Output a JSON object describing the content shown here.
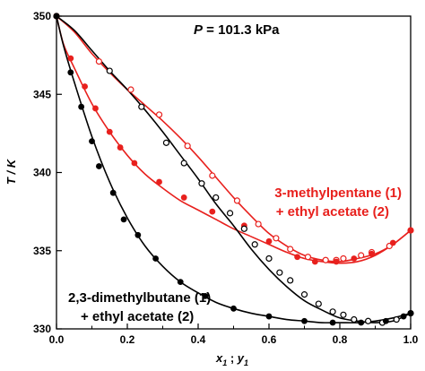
{
  "chart_data": {
    "type": "scatter",
    "title_prefix": "P",
    "title_rest": " = 101.3 kPa",
    "xlabel_parts": [
      "x",
      "1",
      " ; ",
      "y",
      "1"
    ],
    "ylabel": "T / K",
    "xlim": [
      0.0,
      1.0
    ],
    "ylim": [
      330,
      350
    ],
    "xticks": [
      "0.0",
      "0.2",
      "0.4",
      "0.6",
      "0.8",
      "1.0"
    ],
    "yticks": [
      "330",
      "335",
      "340",
      "345",
      "350"
    ],
    "grid": false,
    "colors": {
      "red": "#e8201d",
      "black": "#000000"
    },
    "series": [
      {
        "annotation": [
          "3-methylpentane (1)",
          "+ ethyl acetate (2)"
        ],
        "color": "#e8201d",
        "liquid_points": [
          [
            0.0,
            350.0
          ],
          [
            0.04,
            347.3
          ],
          [
            0.08,
            345.5
          ],
          [
            0.11,
            344.1
          ],
          [
            0.15,
            342.6
          ],
          [
            0.18,
            341.6
          ],
          [
            0.22,
            340.6
          ],
          [
            0.29,
            339.4
          ],
          [
            0.36,
            338.4
          ],
          [
            0.44,
            337.5
          ],
          [
            0.53,
            336.6
          ],
          [
            0.6,
            335.6
          ],
          [
            0.68,
            334.6
          ],
          [
            0.73,
            334.3
          ],
          [
            0.79,
            334.3
          ],
          [
            0.84,
            334.5
          ],
          [
            0.89,
            334.8
          ],
          [
            0.95,
            335.5
          ],
          [
            1.0,
            336.3
          ]
        ],
        "vapor_points": [
          [
            0.0,
            350.0
          ],
          [
            0.12,
            347.1
          ],
          [
            0.21,
            345.3
          ],
          [
            0.29,
            343.7
          ],
          [
            0.37,
            341.7
          ],
          [
            0.44,
            339.8
          ],
          [
            0.51,
            338.2
          ],
          [
            0.57,
            336.7
          ],
          [
            0.62,
            335.8
          ],
          [
            0.66,
            335.1
          ],
          [
            0.71,
            334.6
          ],
          [
            0.76,
            334.4
          ],
          [
            0.79,
            334.4
          ],
          [
            0.81,
            334.5
          ],
          [
            0.86,
            334.7
          ],
          [
            0.89,
            334.9
          ],
          [
            0.94,
            335.3
          ],
          [
            1.0,
            336.3
          ]
        ],
        "bubble_curve": [
          [
            0.0,
            350.0
          ],
          [
            0.02,
            348.2
          ],
          [
            0.05,
            346.7
          ],
          [
            0.1,
            344.4
          ],
          [
            0.15,
            342.6
          ],
          [
            0.2,
            341.1
          ],
          [
            0.25,
            339.9
          ],
          [
            0.3,
            339.0
          ],
          [
            0.35,
            338.2
          ],
          [
            0.4,
            337.6
          ],
          [
            0.45,
            337.0
          ],
          [
            0.5,
            336.4
          ],
          [
            0.55,
            335.9
          ],
          [
            0.6,
            335.4
          ],
          [
            0.65,
            334.9
          ],
          [
            0.7,
            334.5
          ],
          [
            0.75,
            334.3
          ],
          [
            0.8,
            334.2
          ],
          [
            0.85,
            334.3
          ],
          [
            0.9,
            334.7
          ],
          [
            0.95,
            335.4
          ],
          [
            1.0,
            336.3
          ]
        ],
        "dew_curve": [
          [
            0.0,
            350.0
          ],
          [
            0.05,
            349.0
          ],
          [
            0.1,
            347.6
          ],
          [
            0.15,
            346.4
          ],
          [
            0.2,
            345.3
          ],
          [
            0.25,
            344.3
          ],
          [
            0.3,
            343.3
          ],
          [
            0.35,
            342.2
          ],
          [
            0.4,
            341.0
          ],
          [
            0.45,
            339.7
          ],
          [
            0.5,
            338.4
          ],
          [
            0.55,
            337.2
          ],
          [
            0.6,
            336.1
          ],
          [
            0.65,
            335.3
          ],
          [
            0.7,
            334.7
          ],
          [
            0.75,
            334.4
          ],
          [
            0.8,
            334.3
          ],
          [
            0.85,
            334.5
          ],
          [
            0.9,
            334.8
          ],
          [
            0.95,
            335.4
          ],
          [
            1.0,
            336.3
          ]
        ]
      },
      {
        "annotation": [
          "2,3-dimethylbutane (1)",
          "+ ethyl acetate (2)"
        ],
        "color": "#000000",
        "liquid_points": [
          [
            0.0,
            350.0
          ],
          [
            0.04,
            346.4
          ],
          [
            0.07,
            344.2
          ],
          [
            0.1,
            342.0
          ],
          [
            0.12,
            340.4
          ],
          [
            0.16,
            338.7
          ],
          [
            0.19,
            337.0
          ],
          [
            0.23,
            336.0
          ],
          [
            0.28,
            334.5
          ],
          [
            0.35,
            333.0
          ],
          [
            0.42,
            332.1
          ],
          [
            0.5,
            331.3
          ],
          [
            0.6,
            330.8
          ],
          [
            0.7,
            330.5
          ],
          [
            0.78,
            330.4
          ],
          [
            0.86,
            330.4
          ],
          [
            0.93,
            330.5
          ],
          [
            0.98,
            330.8
          ],
          [
            1.0,
            331.0
          ]
        ],
        "vapor_points": [
          [
            0.0,
            350.0
          ],
          [
            0.15,
            346.5
          ],
          [
            0.24,
            344.2
          ],
          [
            0.31,
            341.9
          ],
          [
            0.36,
            340.6
          ],
          [
            0.41,
            339.3
          ],
          [
            0.45,
            338.4
          ],
          [
            0.49,
            337.4
          ],
          [
            0.53,
            336.4
          ],
          [
            0.56,
            335.4
          ],
          [
            0.6,
            334.5
          ],
          [
            0.63,
            333.6
          ],
          [
            0.66,
            333.1
          ],
          [
            0.7,
            332.2
          ],
          [
            0.74,
            331.6
          ],
          [
            0.78,
            331.1
          ],
          [
            0.81,
            330.9
          ],
          [
            0.84,
            330.6
          ],
          [
            0.88,
            330.5
          ],
          [
            0.92,
            330.4
          ],
          [
            0.96,
            330.6
          ],
          [
            1.0,
            331.0
          ]
        ],
        "bubble_curve": [
          [
            0.0,
            350.0
          ],
          [
            0.02,
            348.1
          ],
          [
            0.05,
            345.8
          ],
          [
            0.1,
            342.3
          ],
          [
            0.15,
            339.4
          ],
          [
            0.2,
            337.1
          ],
          [
            0.25,
            335.3
          ],
          [
            0.3,
            334.0
          ],
          [
            0.35,
            333.0
          ],
          [
            0.4,
            332.3
          ],
          [
            0.45,
            331.7
          ],
          [
            0.5,
            331.3
          ],
          [
            0.55,
            331.0
          ],
          [
            0.6,
            330.8
          ],
          [
            0.65,
            330.6
          ],
          [
            0.7,
            330.5
          ],
          [
            0.75,
            330.4
          ],
          [
            0.8,
            330.4
          ],
          [
            0.85,
            330.4
          ],
          [
            0.9,
            330.5
          ],
          [
            0.95,
            330.7
          ],
          [
            1.0,
            331.0
          ]
        ],
        "dew_curve": [
          [
            0.0,
            350.0
          ],
          [
            0.05,
            349.1
          ],
          [
            0.1,
            347.8
          ],
          [
            0.15,
            346.5
          ],
          [
            0.2,
            345.3
          ],
          [
            0.25,
            344.0
          ],
          [
            0.3,
            342.6
          ],
          [
            0.35,
            341.1
          ],
          [
            0.4,
            339.6
          ],
          [
            0.45,
            338.0
          ],
          [
            0.5,
            336.6
          ],
          [
            0.55,
            335.1
          ],
          [
            0.6,
            333.8
          ],
          [
            0.65,
            332.7
          ],
          [
            0.7,
            331.8
          ],
          [
            0.75,
            331.2
          ],
          [
            0.8,
            330.7
          ],
          [
            0.85,
            330.5
          ],
          [
            0.9,
            330.4
          ],
          [
            0.95,
            330.5
          ],
          [
            1.0,
            331.0
          ]
        ]
      }
    ]
  }
}
